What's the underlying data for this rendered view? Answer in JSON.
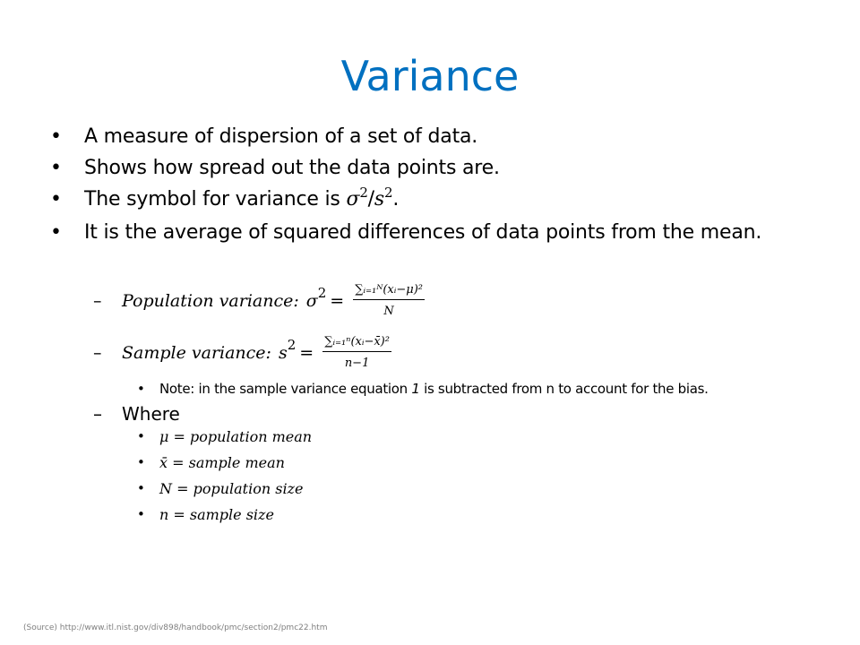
{
  "slide": {
    "title": "Variance",
    "bullet_symbol": "•",
    "bullets": [
      "A measure of dispersion of a set of data.",
      "Shows how spread out the data points are.",
      "The symbol for variance is",
      "It is the average of squared differences of data points from the mean."
    ],
    "symbol_formula": {
      "sigma": "σ",
      "exp": "2",
      "slash": "/",
      "s": "s",
      "end": "."
    },
    "population": {
      "dash": "–",
      "label": "Population variance:",
      "lhs": "σ",
      "exp": "2",
      "equals": "=",
      "numerator": "∑ᵢ₌₁ᴺ(xᵢ−μ)²",
      "denominator": "N"
    },
    "sample": {
      "dash": "–",
      "label": "Sample variance:",
      "lhs": "s",
      "exp": "2",
      "equals": "=",
      "numerator": "∑ᵢ₌₁ⁿ(xᵢ−x̄)²",
      "denominator": "n−1"
    },
    "note": {
      "bullet": "•",
      "text_before": "Note: in the sample variance equation ",
      "italic_one": "1",
      "text_after": " is subtracted from n to account for the bias."
    },
    "where": {
      "dash": "–",
      "label": "Where"
    },
    "definitions": [
      "μ = population mean",
      "x̄ = sample mean",
      "N = population size",
      "n = sample size"
    ],
    "source": "(Source) http://www.itl.nist.gov/div898/handbook/pmc/section2/pmc22.htm"
  },
  "colors": {
    "title": "#0070c0",
    "text": "#000000",
    "source": "#7f7f7f"
  }
}
